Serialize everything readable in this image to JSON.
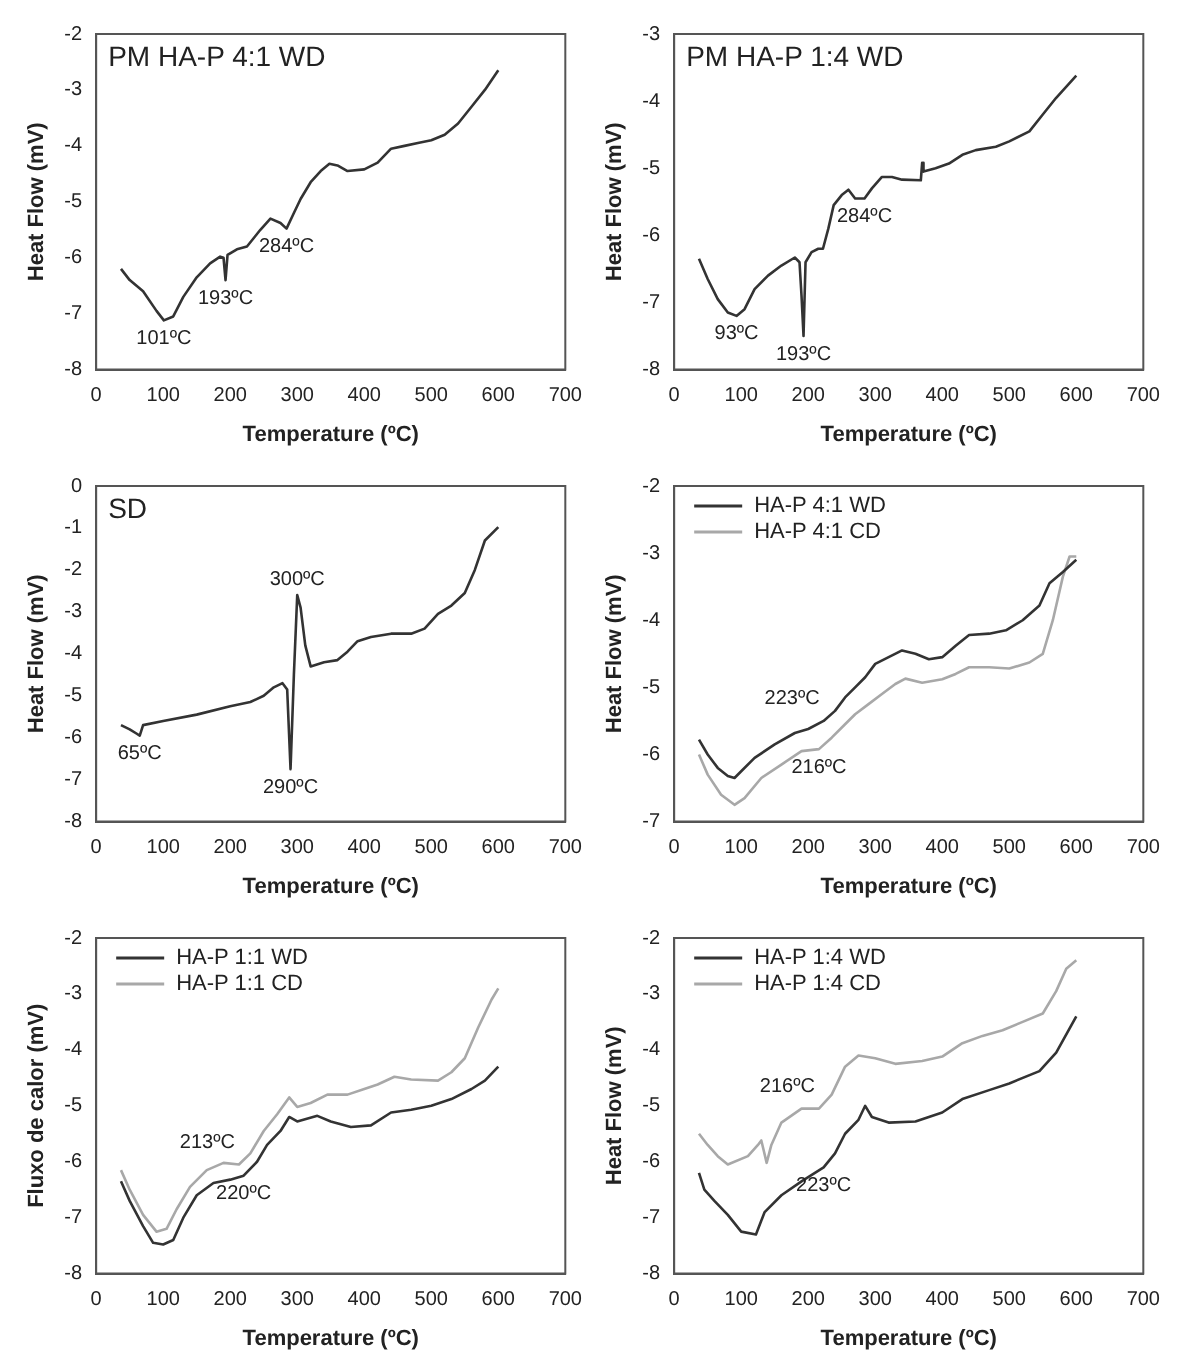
{
  "chart_data": [
    {
      "type": "line",
      "title": "PM HA-P 4:1 WD",
      "xlabel": "Temperature (ºC)",
      "ylabel": "Heat Flow (mV)",
      "xlim": [
        0,
        700
      ],
      "xticks": [
        0,
        100,
        200,
        300,
        400,
        500,
        600,
        700
      ],
      "ylim": [
        -8,
        -2
      ],
      "yticks": [
        -8,
        -7,
        -6,
        -5,
        -4,
        -3,
        -2
      ],
      "grid": false,
      "series": [
        {
          "color": "#333333",
          "x": [
            37,
            50,
            70,
            90,
            101,
            115,
            130,
            150,
            170,
            185,
            190,
            193,
            196,
            210,
            225,
            245,
            260,
            275,
            284,
            295,
            305,
            320,
            335,
            348,
            360,
            375,
            400,
            420,
            440,
            460,
            480,
            500,
            520,
            540,
            560,
            580,
            600
          ],
          "values": [
            -6.2,
            -6.4,
            -6.6,
            -6.95,
            -7.12,
            -7.05,
            -6.7,
            -6.35,
            -6.1,
            -5.98,
            -6.0,
            -6.4,
            -5.95,
            -5.85,
            -5.8,
            -5.5,
            -5.3,
            -5.38,
            -5.48,
            -5.2,
            -4.95,
            -4.65,
            -4.45,
            -4.32,
            -4.35,
            -4.45,
            -4.42,
            -4.3,
            -4.05,
            -4.0,
            -3.95,
            -3.9,
            -3.8,
            -3.6,
            -3.3,
            -3.0,
            -2.65
          ]
        }
      ],
      "annotations": [
        {
          "text": "101ºC",
          "x": 101,
          "y": -7.12
        },
        {
          "text": "193ºC",
          "x": 193,
          "y": -6.4
        },
        {
          "text": "284ºC",
          "x": 284,
          "y": -5.48
        }
      ]
    },
    {
      "type": "line",
      "title": "PM HA-P 1:4 WD",
      "xlabel": "Temperature (ºC)",
      "ylabel": "Heat Flow (mV)",
      "xlim": [
        0,
        700
      ],
      "xticks": [
        0,
        100,
        200,
        300,
        400,
        500,
        600,
        700
      ],
      "ylim": [
        -8,
        -3
      ],
      "yticks": [
        -8,
        -7,
        -6,
        -5,
        -4,
        -3
      ],
      "grid": false,
      "series": [
        {
          "color": "#333333",
          "x": [
            37,
            50,
            65,
            80,
            93,
            105,
            120,
            140,
            160,
            180,
            187,
            190,
            193,
            196,
            205,
            215,
            222,
            230,
            238,
            250,
            260,
            270,
            284,
            295,
            310,
            325,
            340,
            368,
            370,
            372,
            390,
            410,
            430,
            450,
            480,
            500,
            530,
            550,
            570,
            600
          ],
          "values": [
            -6.35,
            -6.65,
            -6.95,
            -7.15,
            -7.2,
            -7.1,
            -6.8,
            -6.6,
            -6.45,
            -6.33,
            -6.4,
            -6.9,
            -7.5,
            -6.4,
            -6.25,
            -6.2,
            -6.2,
            -5.9,
            -5.55,
            -5.4,
            -5.32,
            -5.45,
            -5.45,
            -5.3,
            -5.13,
            -5.13,
            -5.17,
            -5.18,
            -4.92,
            -5.05,
            -5.0,
            -4.93,
            -4.8,
            -4.73,
            -4.68,
            -4.6,
            -4.45,
            -4.2,
            -3.95,
            -3.62
          ]
        }
      ],
      "annotations": [
        {
          "text": "93ºC",
          "x": 93,
          "y": -7.2
        },
        {
          "text": "193ºC",
          "x": 193,
          "y": -7.5
        },
        {
          "text": "284ºC",
          "x": 284,
          "y": -5.45
        }
      ]
    },
    {
      "type": "line",
      "title": "SD",
      "xlabel": "Temperature (ºC)",
      "ylabel": "Heat Flow (mV)",
      "xlim": [
        0,
        700
      ],
      "xticks": [
        0,
        100,
        200,
        300,
        400,
        500,
        600,
        700
      ],
      "ylim": [
        -8,
        0
      ],
      "yticks": [
        -8,
        -7,
        -6,
        -5,
        -4,
        -3,
        -2,
        -1,
        0
      ],
      "grid": false,
      "series": [
        {
          "color": "#333333",
          "x": [
            37,
            50,
            60,
            65,
            70,
            100,
            150,
            200,
            230,
            250,
            265,
            278,
            285,
            290,
            295,
            300,
            305,
            312,
            320,
            340,
            360,
            375,
            390,
            410,
            440,
            470,
            490,
            510,
            530,
            550,
            565,
            580,
            600
          ],
          "values": [
            -5.7,
            -5.8,
            -5.9,
            -5.95,
            -5.7,
            -5.6,
            -5.45,
            -5.25,
            -5.15,
            -5.0,
            -4.8,
            -4.7,
            -4.85,
            -6.75,
            -4.5,
            -2.6,
            -2.9,
            -3.8,
            -4.3,
            -4.2,
            -4.15,
            -3.95,
            -3.7,
            -3.6,
            -3.52,
            -3.52,
            -3.4,
            -3.05,
            -2.85,
            -2.55,
            -2.0,
            -1.3,
            -0.98
          ]
        }
      ],
      "annotations": [
        {
          "text": "65ºC",
          "x": 65,
          "y": -5.95
        },
        {
          "text": "300ºC",
          "x": 300,
          "y": -2.6
        },
        {
          "text": "290ºC",
          "x": 290,
          "y": -6.75
        }
      ]
    },
    {
      "type": "line",
      "xlabel": "Temperature (ºC)",
      "ylabel": "Heat Flow (mV)",
      "xlim": [
        0,
        700
      ],
      "xticks": [
        0,
        100,
        200,
        300,
        400,
        500,
        600,
        700
      ],
      "ylim": [
        -7,
        -2
      ],
      "yticks": [
        -7,
        -6,
        -5,
        -4,
        -3,
        -2
      ],
      "grid": false,
      "legend": "top left",
      "series": [
        {
          "name": "HA-P 4:1 WD",
          "color": "#333333",
          "x": [
            37,
            50,
            65,
            80,
            90,
            100,
            120,
            150,
            180,
            200,
            223,
            240,
            255,
            270,
            285,
            300,
            320,
            340,
            360,
            380,
            400,
            420,
            440,
            470,
            495,
            520,
            545,
            560,
            580,
            600
          ],
          "values": [
            -5.78,
            -6.0,
            -6.2,
            -6.32,
            -6.35,
            -6.25,
            -6.05,
            -5.85,
            -5.68,
            -5.62,
            -5.5,
            -5.35,
            -5.15,
            -5.0,
            -4.85,
            -4.65,
            -4.55,
            -4.45,
            -4.5,
            -4.58,
            -4.55,
            -4.38,
            -4.22,
            -4.2,
            -4.15,
            -4.0,
            -3.78,
            -3.45,
            -3.28,
            -3.1
          ]
        },
        {
          "name": "HA-P 4:1 CD",
          "color": "#a8a8a8",
          "x": [
            37,
            50,
            70,
            90,
            105,
            130,
            160,
            190,
            216,
            235,
            255,
            270,
            290,
            310,
            330,
            345,
            370,
            400,
            420,
            440,
            470,
            500,
            530,
            550,
            565,
            580,
            590,
            600
          ],
          "values": [
            -6.0,
            -6.3,
            -6.6,
            -6.75,
            -6.65,
            -6.35,
            -6.15,
            -5.95,
            -5.92,
            -5.75,
            -5.55,
            -5.4,
            -5.25,
            -5.1,
            -4.95,
            -4.87,
            -4.93,
            -4.88,
            -4.8,
            -4.7,
            -4.7,
            -4.72,
            -4.63,
            -4.5,
            -4.0,
            -3.35,
            -3.05,
            -3.05
          ]
        }
      ],
      "annotations": [
        {
          "text": "223ºC",
          "x": 223,
          "y": -5.5
        },
        {
          "text": "216ºC",
          "x": 216,
          "y": -5.92
        }
      ]
    },
    {
      "type": "line",
      "xlabel": "Temperature (ºC)",
      "ylabel": "Fluxo de calor (mV)",
      "xlim": [
        0,
        700
      ],
      "xticks": [
        0,
        100,
        200,
        300,
        400,
        500,
        600,
        700
      ],
      "ylim": [
        -8,
        -2
      ],
      "yticks": [
        -8,
        -7,
        -6,
        -5,
        -4,
        -3,
        -2
      ],
      "grid": false,
      "legend": "top left",
      "series": [
        {
          "name": "HA-P 1:1 WD",
          "color": "#333333",
          "x": [
            37,
            50,
            70,
            85,
            100,
            115,
            130,
            150,
            175,
            200,
            220,
            240,
            255,
            275,
            288,
            300,
            330,
            350,
            380,
            410,
            440,
            470,
            500,
            530,
            560,
            580,
            600
          ],
          "values": [
            -6.35,
            -6.7,
            -7.15,
            -7.45,
            -7.48,
            -7.4,
            -7.0,
            -6.6,
            -6.38,
            -6.32,
            -6.25,
            -6.0,
            -5.7,
            -5.45,
            -5.2,
            -5.28,
            -5.18,
            -5.28,
            -5.38,
            -5.35,
            -5.12,
            -5.07,
            -5.0,
            -4.88,
            -4.7,
            -4.55,
            -4.3
          ]
        },
        {
          "name": "HA-P 1:1 CD",
          "color": "#a8a8a8",
          "x": [
            37,
            50,
            70,
            90,
            105,
            120,
            140,
            165,
            190,
            213,
            230,
            250,
            270,
            288,
            300,
            320,
            345,
            375,
            400,
            420,
            445,
            470,
            510,
            530,
            550,
            570,
            590,
            600
          ],
          "values": [
            -6.15,
            -6.5,
            -6.95,
            -7.25,
            -7.2,
            -6.85,
            -6.45,
            -6.15,
            -6.02,
            -6.05,
            -5.85,
            -5.45,
            -5.15,
            -4.85,
            -5.02,
            -4.95,
            -4.8,
            -4.8,
            -4.7,
            -4.62,
            -4.48,
            -4.53,
            -4.55,
            -4.4,
            -4.15,
            -3.6,
            -3.1,
            -2.9
          ]
        }
      ],
      "annotations": [
        {
          "text": "213ºC",
          "x": 213,
          "y": -6.05
        },
        {
          "text": "220ºC",
          "x": 220,
          "y": -6.25
        }
      ]
    },
    {
      "type": "line",
      "xlabel": "Temperature (ºC)",
      "ylabel": "Heat Flow (mV)",
      "xlim": [
        0,
        700
      ],
      "xticks": [
        0,
        100,
        200,
        300,
        400,
        500,
        600,
        700
      ],
      "ylim": [
        -8,
        -2
      ],
      "yticks": [
        -8,
        -7,
        -6,
        -5,
        -4,
        -3,
        -2
      ],
      "grid": false,
      "legend": "top left",
      "series": [
        {
          "name": "HA-P 1:4 WD",
          "color": "#333333",
          "x": [
            37,
            45,
            60,
            80,
            100,
            122,
            135,
            160,
            190,
            223,
            240,
            255,
            275,
            285,
            295,
            320,
            360,
            400,
            430,
            470,
            500,
            545,
            570,
            600
          ],
          "values": [
            -6.2,
            -6.5,
            -6.7,
            -6.95,
            -7.25,
            -7.3,
            -6.9,
            -6.6,
            -6.35,
            -6.1,
            -5.85,
            -5.5,
            -5.25,
            -5.0,
            -5.2,
            -5.3,
            -5.28,
            -5.12,
            -4.88,
            -4.72,
            -4.6,
            -4.38,
            -4.05,
            -3.4
          ]
        },
        {
          "name": "HA-P 1:4 CD",
          "color": "#a8a8a8",
          "x": [
            37,
            50,
            65,
            80,
            110,
            125,
            130,
            138,
            145,
            160,
            190,
            216,
            235,
            255,
            275,
            300,
            330,
            370,
            400,
            430,
            460,
            490,
            520,
            550,
            570,
            585,
            600
          ],
          "values": [
            -5.5,
            -5.7,
            -5.9,
            -6.05,
            -5.9,
            -5.7,
            -5.62,
            -6.02,
            -5.7,
            -5.3,
            -5.05,
            -5.05,
            -4.8,
            -4.3,
            -4.1,
            -4.15,
            -4.25,
            -4.2,
            -4.12,
            -3.88,
            -3.75,
            -3.65,
            -3.5,
            -3.35,
            -2.95,
            -2.55,
            -2.4
          ]
        }
      ],
      "annotations": [
        {
          "text": "216ºC",
          "x": 216,
          "y": -5.05
        },
        {
          "text": "223ºC",
          "x": 223,
          "y": -6.1
        }
      ]
    }
  ]
}
